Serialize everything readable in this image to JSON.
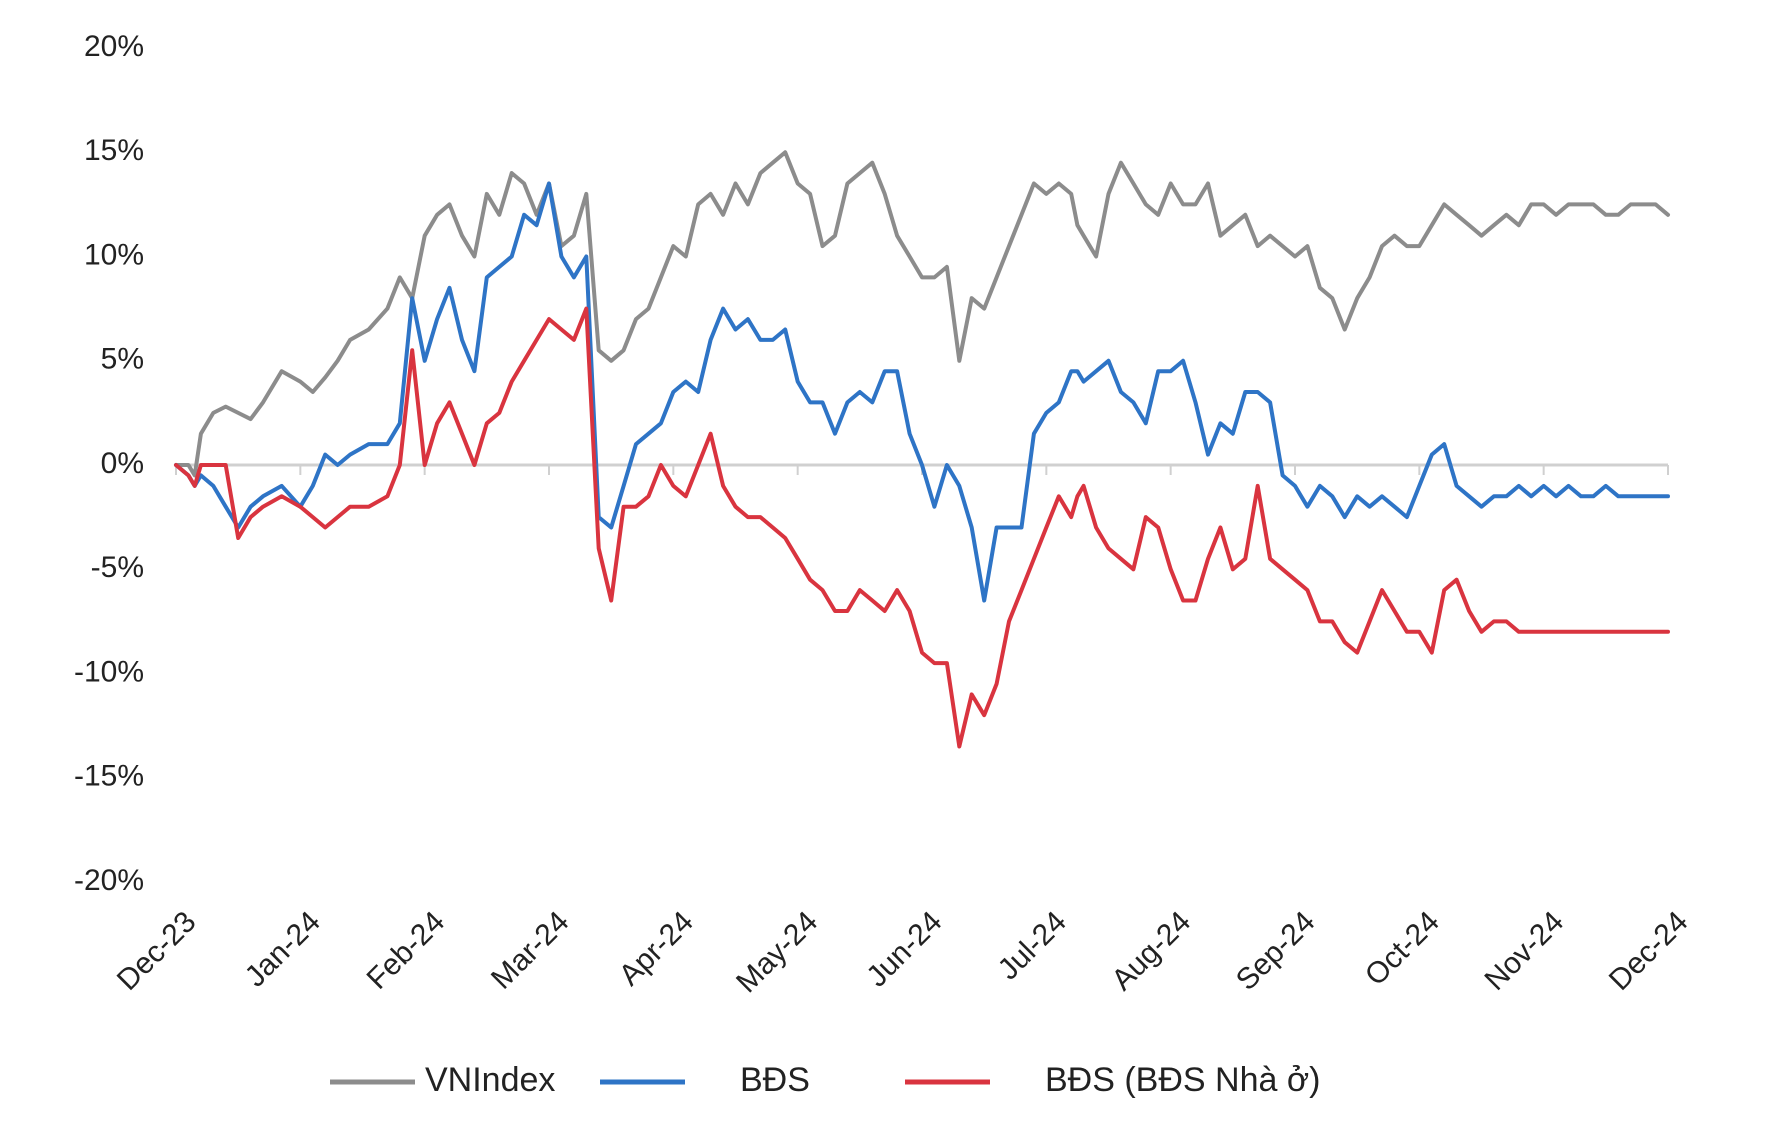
{
  "chart_data": {
    "type": "line",
    "title": "",
    "xlabel": "",
    "ylabel": "",
    "ylim": [
      -20,
      20
    ],
    "y_ticks": [
      20,
      15,
      10,
      5,
      0,
      -5,
      -10,
      -15,
      -20
    ],
    "y_tick_labels": [
      "20%",
      "15%",
      "10%",
      "5%",
      "0%",
      "-5%",
      "-10%",
      "-15%",
      "-20%"
    ],
    "x_ticks": [
      "Dec-23",
      "Jan-24",
      "Feb-24",
      "Mar-24",
      "Apr-24",
      "May-24",
      "Jun-24",
      "Jul-24",
      "Aug-24",
      "Sep-24",
      "Oct-24",
      "Nov-24",
      "Dec-24"
    ],
    "xlim": [
      0,
      12
    ],
    "zero_line": true,
    "grid": false,
    "legend_position": "bottom",
    "series": [
      {
        "name": "VNIndex",
        "color": "#8c8c8c",
        "x": [
          0,
          0.1,
          0.15,
          0.2,
          0.3,
          0.4,
          0.5,
          0.6,
          0.7,
          0.85,
          1.0,
          1.1,
          1.2,
          1.3,
          1.4,
          1.55,
          1.7,
          1.8,
          1.9,
          2.0,
          2.1,
          2.2,
          2.3,
          2.4,
          2.5,
          2.6,
          2.7,
          2.8,
          2.9,
          3.0,
          3.1,
          3.2,
          3.3,
          3.4,
          3.5,
          3.6,
          3.7,
          3.8,
          3.9,
          4.0,
          4.1,
          4.2,
          4.3,
          4.4,
          4.5,
          4.6,
          4.7,
          4.8,
          4.9,
          5.0,
          5.1,
          5.2,
          5.3,
          5.4,
          5.5,
          5.6,
          5.7,
          5.8,
          5.9,
          6.0,
          6.1,
          6.2,
          6.3,
          6.4,
          6.5,
          6.6,
          6.7,
          6.8,
          6.9,
          7.0,
          7.1,
          7.2,
          7.25,
          7.3,
          7.4,
          7.5,
          7.6,
          7.7,
          7.8,
          7.9,
          8.0,
          8.1,
          8.2,
          8.3,
          8.4,
          8.5,
          8.6,
          8.7,
          8.8,
          8.9,
          9.0,
          9.1,
          9.2,
          9.3,
          9.4,
          9.5,
          9.6,
          9.7,
          9.8,
          9.9,
          10.0,
          10.1,
          10.2,
          10.3,
          10.4,
          10.5,
          10.6,
          10.7,
          10.8,
          10.9,
          11.0,
          11.1,
          11.2,
          11.3,
          11.4,
          11.5,
          11.6,
          11.7,
          11.8,
          11.9,
          12.0
        ],
        "values": [
          0,
          0,
          -0.5,
          1.5,
          2.5,
          2.8,
          2.5,
          2.2,
          3.0,
          4.5,
          4.0,
          3.5,
          4.2,
          5.0,
          6.0,
          6.5,
          7.5,
          9.0,
          8.0,
          11.0,
          12.0,
          12.5,
          11.0,
          10.0,
          13.0,
          12.0,
          14.0,
          13.5,
          12.0,
          13.5,
          10.5,
          11.0,
          13.0,
          5.5,
          5.0,
          5.5,
          7.0,
          7.5,
          9.0,
          10.5,
          10.0,
          12.5,
          13.0,
          12.0,
          13.5,
          12.5,
          14.0,
          14.5,
          15.0,
          13.5,
          13.0,
          10.5,
          11.0,
          13.5,
          14.0,
          14.5,
          13.0,
          11.0,
          10.0,
          9.0,
          9.0,
          9.5,
          5.0,
          8.0,
          7.5,
          9.0,
          10.5,
          12.0,
          13.5,
          13.0,
          13.5,
          13.0,
          11.5,
          11.0,
          10.0,
          13.0,
          14.5,
          13.5,
          12.5,
          12.0,
          13.5,
          12.5,
          12.5,
          13.5,
          11.0,
          11.5,
          12.0,
          10.5,
          11.0,
          10.5,
          10.0,
          10.5,
          8.5,
          8.0,
          6.5,
          8.0,
          9.0,
          10.5,
          11.0,
          10.5,
          10.5,
          11.5,
          12.5,
          12.0,
          11.5,
          11.0,
          11.5,
          12.0,
          11.5,
          12.5,
          12.5,
          12.0,
          12.5,
          12.5,
          12.5,
          12.0,
          12.0,
          12.5,
          12.5,
          12.5,
          12.0
        ]
      },
      {
        "name": "BĐS",
        "color": "#2e74c6",
        "x": [
          0,
          0.1,
          0.15,
          0.2,
          0.3,
          0.4,
          0.5,
          0.6,
          0.7,
          0.85,
          1.0,
          1.1,
          1.2,
          1.3,
          1.4,
          1.55,
          1.7,
          1.8,
          1.9,
          2.0,
          2.1,
          2.2,
          2.3,
          2.4,
          2.5,
          2.6,
          2.7,
          2.8,
          2.9,
          3.0,
          3.1,
          3.2,
          3.3,
          3.4,
          3.5,
          3.6,
          3.7,
          3.8,
          3.9,
          4.0,
          4.1,
          4.2,
          4.3,
          4.4,
          4.5,
          4.6,
          4.7,
          4.8,
          4.9,
          5.0,
          5.1,
          5.2,
          5.3,
          5.4,
          5.5,
          5.6,
          5.7,
          5.8,
          5.9,
          6.0,
          6.1,
          6.2,
          6.3,
          6.4,
          6.5,
          6.6,
          6.7,
          6.8,
          6.9,
          7.0,
          7.1,
          7.2,
          7.25,
          7.3,
          7.4,
          7.5,
          7.6,
          7.7,
          7.8,
          7.9,
          8.0,
          8.1,
          8.2,
          8.3,
          8.4,
          8.5,
          8.6,
          8.7,
          8.8,
          8.9,
          9.0,
          9.1,
          9.2,
          9.3,
          9.4,
          9.5,
          9.6,
          9.7,
          9.8,
          9.9,
          10.0,
          10.1,
          10.2,
          10.3,
          10.4,
          10.5,
          10.6,
          10.7,
          10.8,
          10.9,
          11.0,
          11.1,
          11.2,
          11.3,
          11.4,
          11.5,
          11.6,
          11.7,
          11.8,
          11.9,
          12.0
        ],
        "values": [
          0,
          -0.5,
          -1.0,
          -0.5,
          -1.0,
          -2.0,
          -3.0,
          -2.0,
          -1.5,
          -1.0,
          -2.0,
          -1.0,
          0.5,
          0.0,
          0.5,
          1.0,
          1.0,
          2.0,
          8.0,
          5.0,
          7.0,
          8.5,
          6.0,
          4.5,
          9.0,
          9.5,
          10.0,
          12.0,
          11.5,
          13.5,
          10.0,
          9.0,
          10.0,
          -2.5,
          -3.0,
          -1.0,
          1.0,
          1.5,
          2.0,
          3.5,
          4.0,
          3.5,
          6.0,
          7.5,
          6.5,
          7.0,
          6.0,
          6.0,
          6.5,
          4.0,
          3.0,
          3.0,
          1.5,
          3.0,
          3.5,
          3.0,
          4.5,
          4.5,
          1.5,
          0.0,
          -2.0,
          0.0,
          -1.0,
          -3.0,
          -6.5,
          -3.0,
          -3.0,
          -3.0,
          1.5,
          2.5,
          3.0,
          4.5,
          4.5,
          4.0,
          4.5,
          5.0,
          3.5,
          3.0,
          2.0,
          4.5,
          4.5,
          5.0,
          3.0,
          0.5,
          2.0,
          1.5,
          3.5,
          3.5,
          3.0,
          -0.5,
          -1.0,
          -2.0,
          -1.0,
          -1.5,
          -2.5,
          -1.5,
          -2.0,
          -1.5,
          -2.0,
          -2.5,
          -1.0,
          0.5,
          1.0,
          -1.0,
          -1.5,
          -2.0,
          -1.5,
          -1.5,
          -1.0,
          -1.5,
          -1.0,
          -1.5,
          -1.0,
          -1.5,
          -1.5,
          -1.0,
          -1.5,
          -1.5,
          -1.5,
          -1.5,
          -1.5
        ]
      },
      {
        "name": "BĐS (BĐS Nhà ở)",
        "color": "#d9343f",
        "x": [
          0,
          0.1,
          0.15,
          0.2,
          0.3,
          0.4,
          0.5,
          0.6,
          0.7,
          0.85,
          1.0,
          1.1,
          1.2,
          1.3,
          1.4,
          1.55,
          1.7,
          1.8,
          1.9,
          2.0,
          2.1,
          2.2,
          2.3,
          2.4,
          2.5,
          2.6,
          2.7,
          2.8,
          2.9,
          3.0,
          3.1,
          3.2,
          3.3,
          3.4,
          3.5,
          3.6,
          3.7,
          3.8,
          3.9,
          4.0,
          4.1,
          4.2,
          4.3,
          4.4,
          4.5,
          4.6,
          4.7,
          4.8,
          4.9,
          5.0,
          5.1,
          5.2,
          5.3,
          5.4,
          5.5,
          5.6,
          5.7,
          5.8,
          5.9,
          6.0,
          6.1,
          6.2,
          6.3,
          6.4,
          6.5,
          6.6,
          6.7,
          6.8,
          6.9,
          7.0,
          7.1,
          7.2,
          7.25,
          7.3,
          7.4,
          7.5,
          7.6,
          7.7,
          7.8,
          7.9,
          8.0,
          8.1,
          8.2,
          8.3,
          8.4,
          8.5,
          8.6,
          8.7,
          8.8,
          8.9,
          9.0,
          9.1,
          9.2,
          9.3,
          9.4,
          9.5,
          9.6,
          9.7,
          9.8,
          9.9,
          10.0,
          10.1,
          10.2,
          10.3,
          10.4,
          10.5,
          10.6,
          10.7,
          10.8,
          10.9,
          11.0,
          11.1,
          11.2,
          11.3,
          11.4,
          11.5,
          11.6,
          11.7,
          11.8,
          11.9,
          12.0
        ],
        "values": [
          0,
          -0.5,
          -1.0,
          0.0,
          0.0,
          0.0,
          -3.5,
          -2.5,
          -2.0,
          -1.5,
          -2.0,
          -2.5,
          -3.0,
          -2.5,
          -2.0,
          -2.0,
          -1.5,
          0.0,
          5.5,
          0.0,
          2.0,
          3.0,
          1.5,
          0.0,
          2.0,
          2.5,
          4.0,
          5.0,
          6.0,
          7.0,
          6.5,
          6.0,
          7.5,
          -4.0,
          -6.5,
          -2.0,
          -2.0,
          -1.5,
          0.0,
          -1.0,
          -1.5,
          0.0,
          1.5,
          -1.0,
          -2.0,
          -2.5,
          -2.5,
          -3.0,
          -3.5,
          -4.5,
          -5.5,
          -6.0,
          -7.0,
          -7.0,
          -6.0,
          -6.5,
          -7.0,
          -6.0,
          -7.0,
          -9.0,
          -9.5,
          -9.5,
          -13.5,
          -11.0,
          -12.0,
          -10.5,
          -7.5,
          -6.0,
          -4.5,
          -3.0,
          -1.5,
          -2.5,
          -1.5,
          -1.0,
          -3.0,
          -4.0,
          -4.5,
          -5.0,
          -2.5,
          -3.0,
          -5.0,
          -6.5,
          -6.5,
          -4.5,
          -3.0,
          -5.0,
          -4.5,
          -1.0,
          -4.5,
          -5.0,
          -5.5,
          -6.0,
          -7.5,
          -7.5,
          -8.5,
          -9.0,
          -7.5,
          -6.0,
          -7.0,
          -8.0,
          -8.0,
          -9.0,
          -6.0,
          -5.5,
          -7.0,
          -8.0,
          -7.5,
          -7.5,
          -8.0,
          -8.0,
          -8.0,
          -8.0,
          -8.0,
          -8.0,
          -8.0,
          -8.0,
          -8.0,
          -8.0,
          -8.0,
          -8.0,
          -8.0
        ]
      }
    ]
  },
  "legend": {
    "items": [
      {
        "label": "VNIndex",
        "color": "#8c8c8c"
      },
      {
        "label": "BĐS",
        "color": "#2e74c6"
      },
      {
        "label": "BĐS (BĐS Nhà ở)",
        "color": "#d9343f"
      }
    ]
  }
}
